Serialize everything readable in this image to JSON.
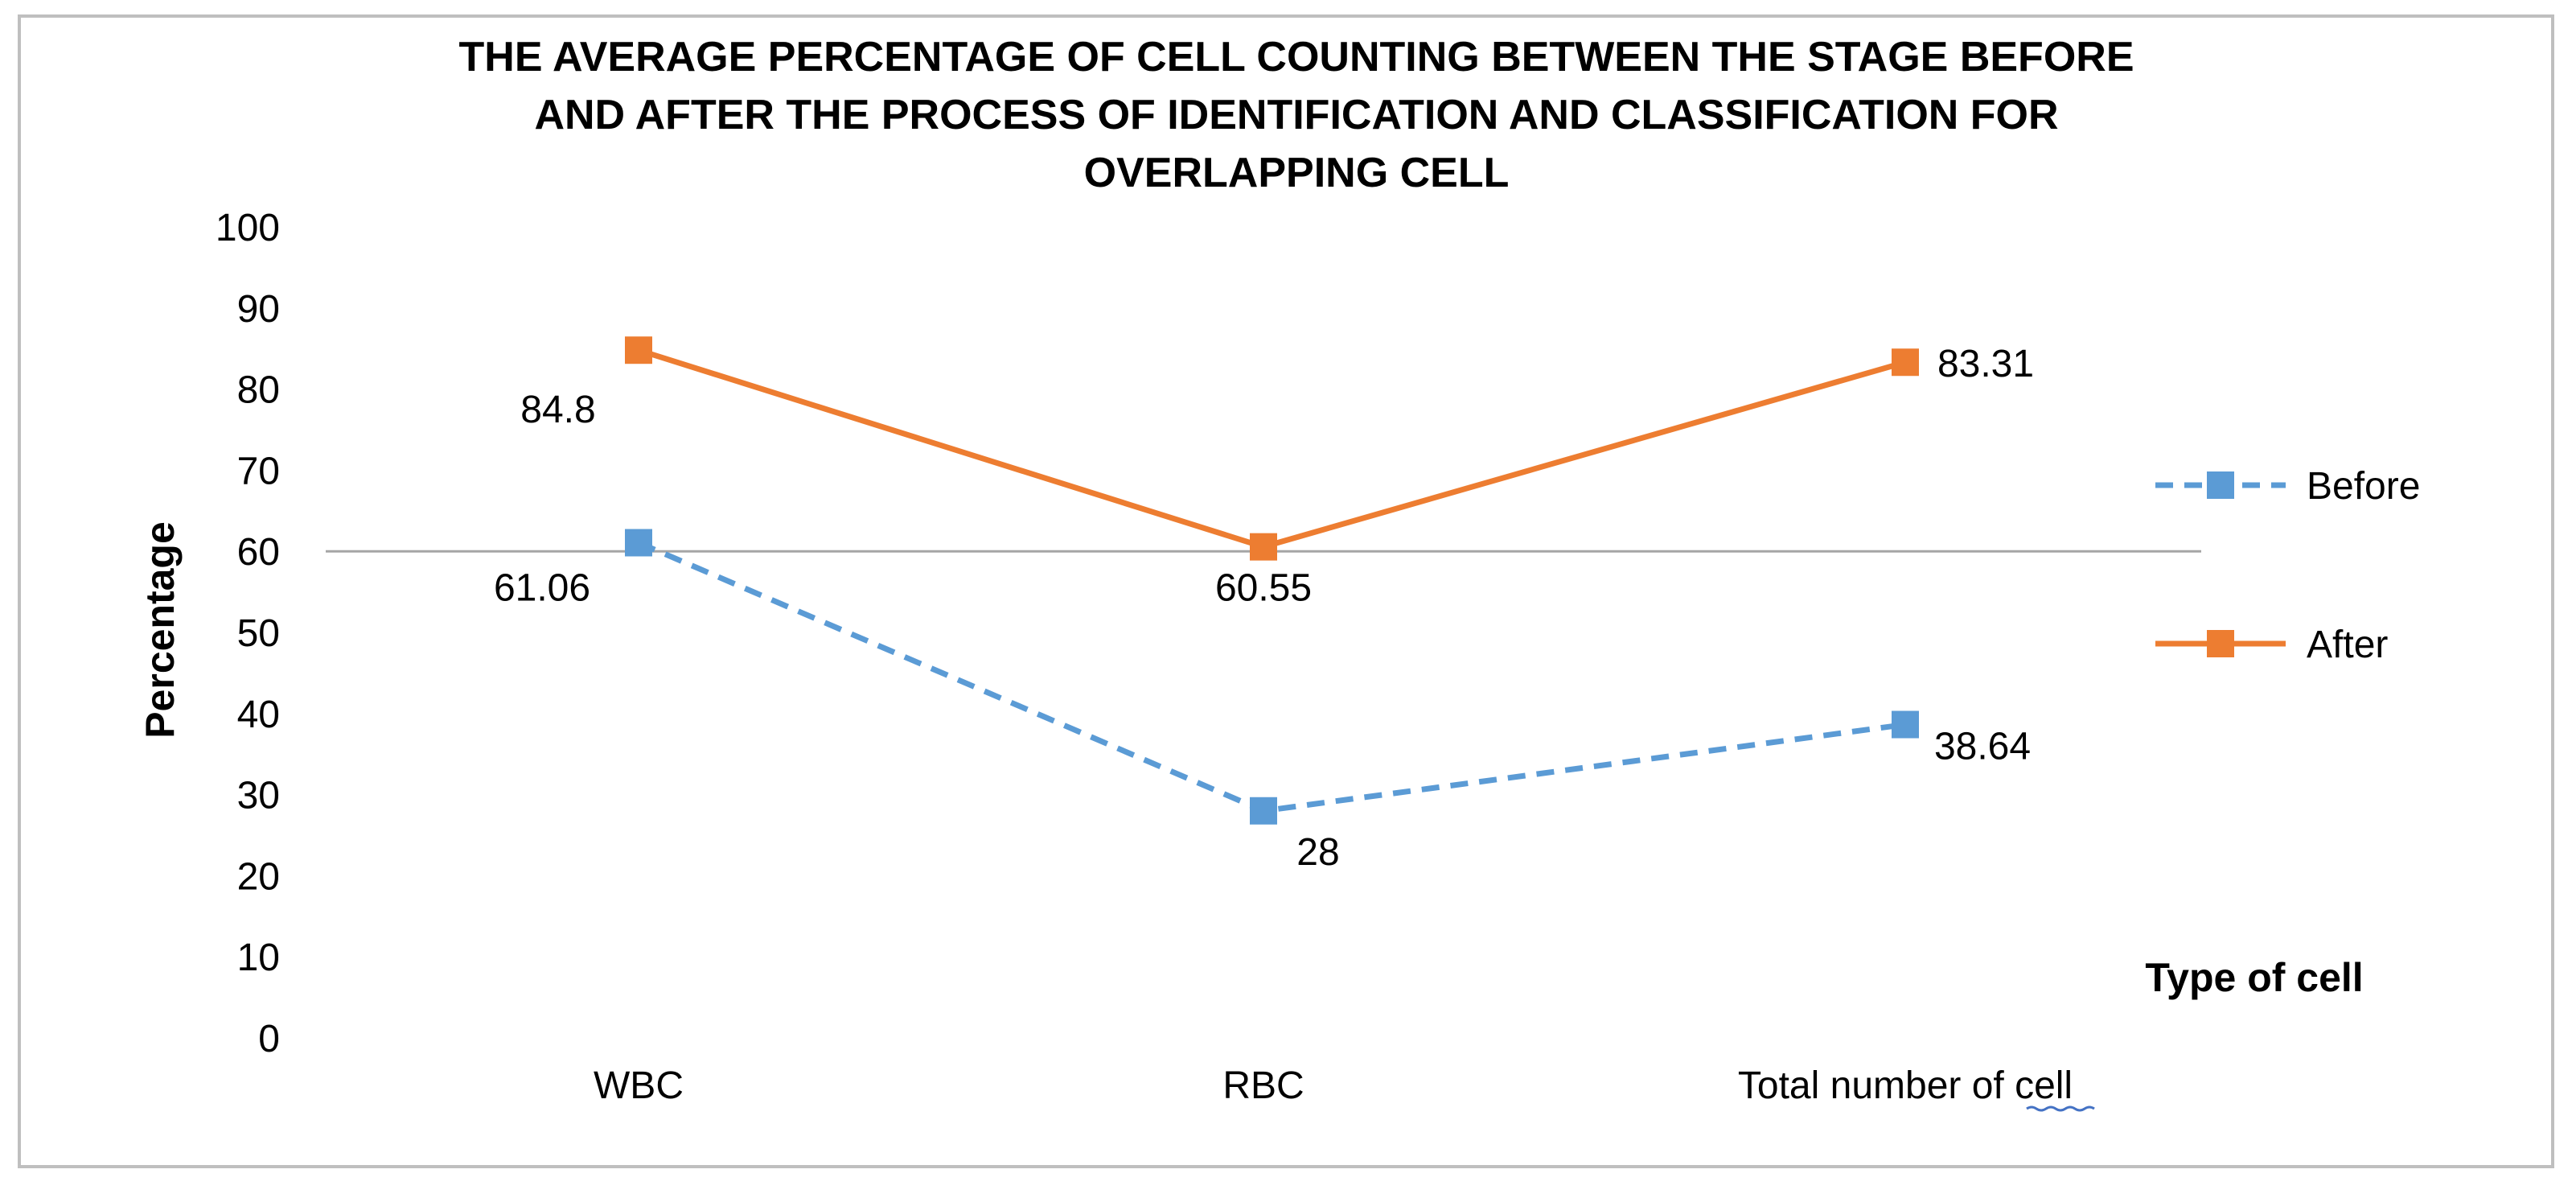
{
  "chart_data": {
    "type": "line",
    "title_lines": [
      "THE AVERAGE PERCENTAGE OF CELL COUNTING BETWEEN THE STAGE BEFORE",
      "AND AFTER THE PROCESS OF IDENTIFICATION AND CLASSIFICATION FOR",
      "OVERLAPPING CELL"
    ],
    "categories": [
      "WBC",
      "RBC",
      "Total number of cell"
    ],
    "xlabel": "Type of cell",
    "ylabel": "Percentage",
    "ylim": [
      0,
      100
    ],
    "yticks": [
      0,
      10,
      20,
      30,
      40,
      50,
      60,
      70,
      80,
      90,
      100
    ],
    "grid": false,
    "legend_position": "right",
    "series": [
      {
        "name": "Before",
        "values": [
          61.06,
          28,
          38.64
        ],
        "data_labels": [
          "61.06",
          "28",
          "38.64"
        ],
        "color": "#5B9BD5",
        "line_style": "dashed",
        "marker": "square"
      },
      {
        "name": "After",
        "values": [
          84.8,
          60.55,
          83.31
        ],
        "data_labels": [
          "84.8",
          "60.55",
          "83.31"
        ],
        "color": "#ED7D31",
        "line_style": "solid",
        "marker": "square"
      }
    ]
  },
  "colors": {
    "frame": "#BFBFBF",
    "reference_line": "#A6A6A6",
    "spellcheck_underline": "#4472C4"
  }
}
